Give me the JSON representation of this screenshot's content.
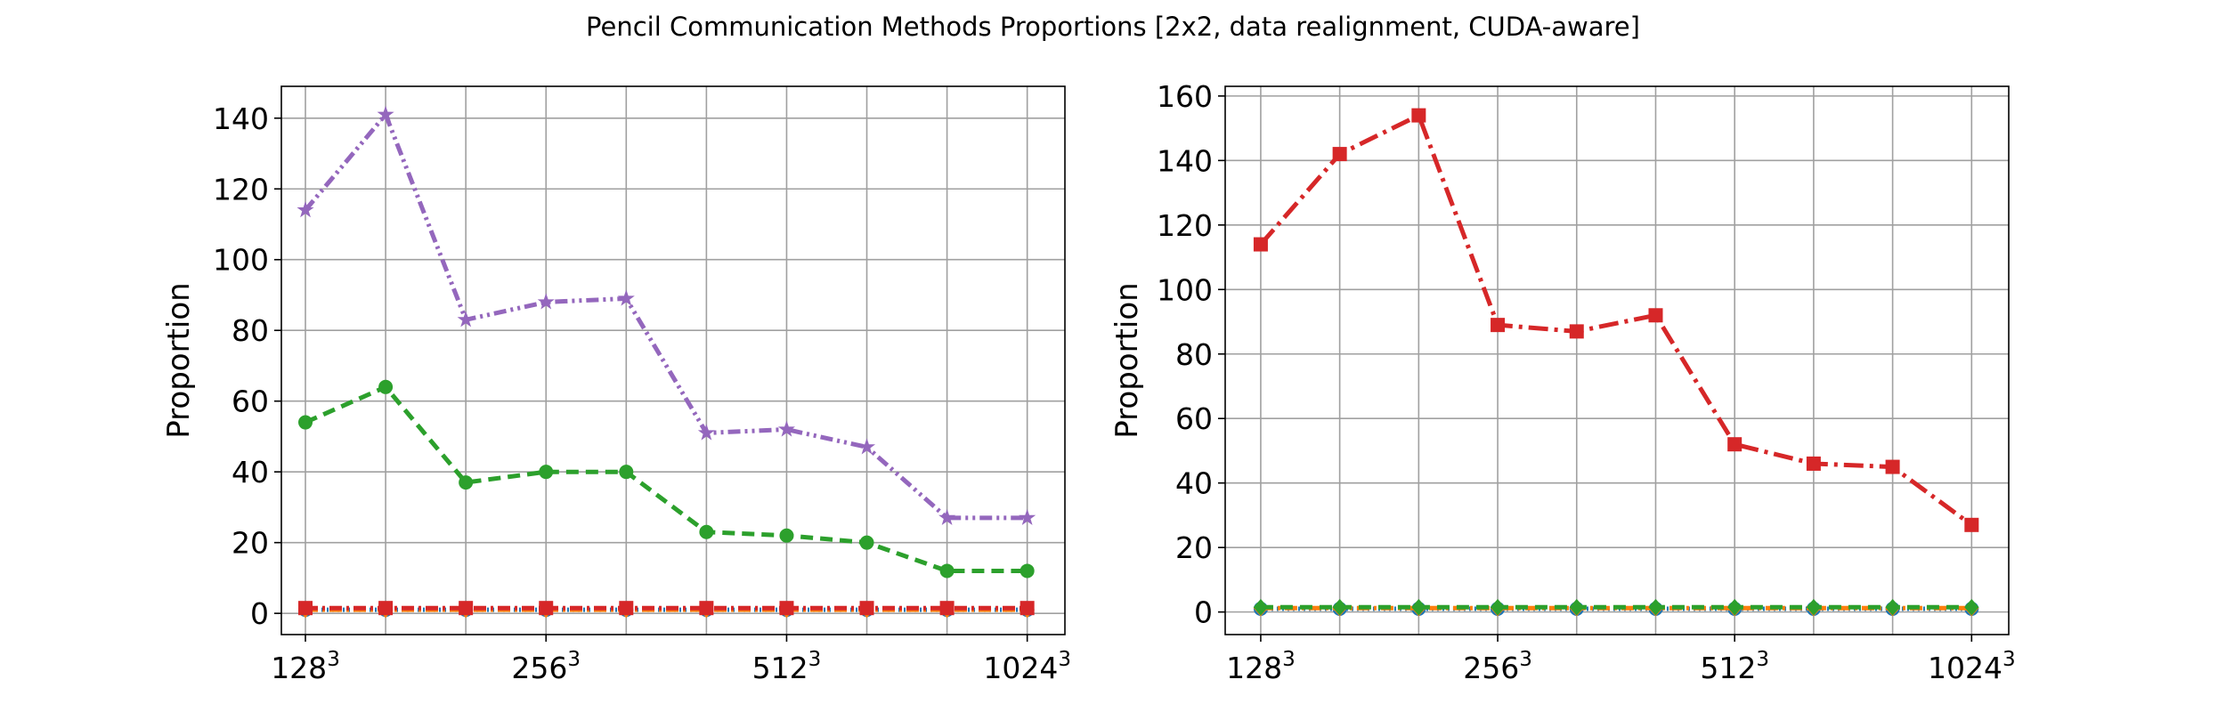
{
  "figure": {
    "title": "Pencil Communication Methods Proportions [2x2, data realignment, CUDA-aware]"
  },
  "chart_data": [
    {
      "type": "line",
      "ylabel": "Proportion",
      "xlabel": "",
      "x_tick_labels": [
        {
          "base": "128",
          "sup": "3"
        },
        {
          "base": "256",
          "sup": "3"
        },
        {
          "base": "512",
          "sup": "3"
        },
        {
          "base": "1024",
          "sup": "3"
        }
      ],
      "x_tick_positions": [
        0,
        3,
        6,
        9
      ],
      "x": [
        0,
        1,
        2,
        3,
        4,
        5,
        6,
        7,
        8,
        9
      ],
      "xlim": [
        -0.3,
        9.47
      ],
      "ylim": [
        -6,
        149
      ],
      "yticks": [
        0,
        20,
        40,
        60,
        80,
        100,
        120,
        140
      ],
      "grid": true,
      "series": [
        {
          "color": "#1f77b4",
          "dash": "2,4",
          "marker": "circle",
          "values": [
            1,
            1,
            1,
            1,
            1,
            1,
            1,
            1,
            1,
            1
          ]
        },
        {
          "color": "#ff7f0e",
          "dash": "14,5,3,5",
          "marker": "diamond",
          "values": [
            1,
            1,
            1,
            1,
            1,
            1,
            1,
            1,
            1,
            1
          ]
        },
        {
          "color": "#2ca02c",
          "dash": "14,8",
          "marker": "circle",
          "values": [
            54,
            64,
            37,
            40,
            40,
            23,
            22,
            20,
            12,
            12
          ]
        },
        {
          "color": "#d62728",
          "dash": "14,5,3,5",
          "marker": "square",
          "values": [
            1.5,
            1.5,
            1.5,
            1.5,
            1.5,
            1.5,
            1.5,
            1.5,
            1.5,
            1.5
          ]
        },
        {
          "color": "#9467bd",
          "dash": "14,5,3,5,3,5",
          "marker": "star",
          "values": [
            114,
            141,
            83,
            88,
            89,
            51,
            52,
            47,
            27,
            27
          ]
        }
      ]
    },
    {
      "type": "line",
      "ylabel": "Proportion",
      "xlabel": "",
      "x_tick_labels": [
        {
          "base": "128",
          "sup": "3"
        },
        {
          "base": "256",
          "sup": "3"
        },
        {
          "base": "512",
          "sup": "3"
        },
        {
          "base": "1024",
          "sup": "3"
        }
      ],
      "x_tick_positions": [
        0,
        3,
        6,
        9
      ],
      "x": [
        0,
        1,
        2,
        3,
        4,
        5,
        6,
        7,
        8,
        9
      ],
      "xlim": [
        -0.45,
        9.47
      ],
      "ylim": [
        -7,
        163
      ],
      "yticks": [
        0,
        20,
        40,
        60,
        80,
        100,
        120,
        140,
        160
      ],
      "grid": true,
      "series": [
        {
          "color": "#1f77b4",
          "dash": "2,4",
          "marker": "circle",
          "values": [
            1,
            1,
            1,
            1,
            1,
            1,
            1,
            1,
            1,
            1
          ]
        },
        {
          "color": "#d62728",
          "dash": "22,7,4,7",
          "marker": "square",
          "values": [
            114,
            142,
            154,
            89,
            87,
            92,
            52,
            46,
            45,
            27
          ]
        },
        {
          "color": "#ff7f0e",
          "dash": "14,5,3,5",
          "marker": "diamond",
          "values": [
            1.2,
            1.2,
            1.2,
            1.2,
            1.2,
            1.2,
            1.2,
            1.2,
            1.2,
            1.2
          ]
        },
        {
          "color": "#2ca02c",
          "dash": "14,8",
          "marker": "diamond",
          "values": [
            1.5,
            1.5,
            1.5,
            1.5,
            1.5,
            1.5,
            1.5,
            1.5,
            1.5,
            1.5
          ]
        }
      ]
    }
  ]
}
